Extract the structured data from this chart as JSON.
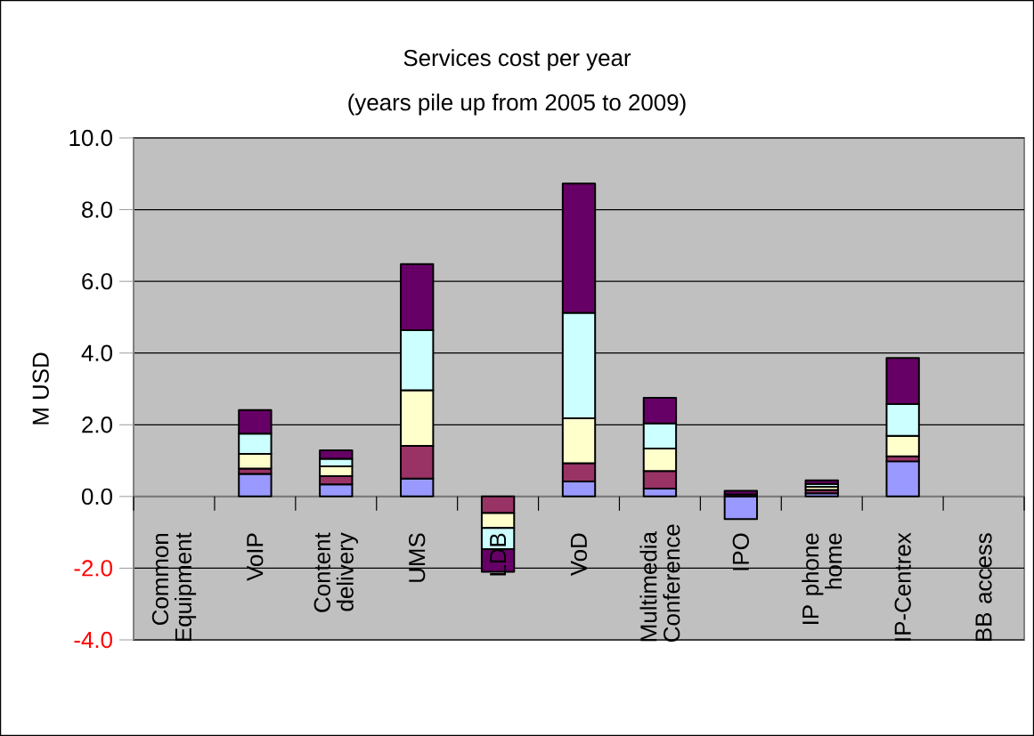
{
  "chart_data": {
    "type": "bar",
    "stacked": true,
    "title": "Services cost per year",
    "subtitle": "(years pile up from 2005 to 2009)",
    "ylabel": "M USD",
    "categories": [
      "Common Equipment",
      "VoIP",
      "Content delivery",
      "UMS",
      "LDB",
      "VoD",
      "Multimedia Conference",
      "IPO",
      "IP phone home",
      "IP-Centrex",
      "BB access"
    ],
    "series": [
      {
        "color": "#9999ff",
        "values": [
          null,
          0.63,
          0.34,
          0.5,
          null,
          0.42,
          0.22,
          -0.63,
          0.09,
          0.98,
          null
        ]
      },
      {
        "color": "#993366",
        "values": [
          null,
          0.15,
          0.23,
          0.91,
          -0.46,
          0.51,
          0.49,
          0.06,
          0.09,
          0.14,
          null
        ]
      },
      {
        "color": "#ffffcc",
        "values": [
          null,
          0.41,
          0.27,
          1.55,
          -0.42,
          1.25,
          0.63,
          null,
          0.09,
          0.57,
          null
        ]
      },
      {
        "color": "#ccffff",
        "values": [
          null,
          0.56,
          0.21,
          1.68,
          -0.59,
          2.94,
          0.7,
          null,
          0.08,
          0.89,
          null
        ]
      },
      {
        "color": "#660066",
        "values": [
          null,
          0.66,
          0.24,
          1.84,
          -0.63,
          3.61,
          0.71,
          0.1,
          0.1,
          1.28,
          null
        ]
      }
    ],
    "ylim": [
      -4,
      10
    ],
    "yticks": [
      {
        "value": -4,
        "label": "-4.0"
      },
      {
        "value": -2,
        "label": "-2.0"
      },
      {
        "value": 0,
        "label": "0.0"
      },
      {
        "value": 2,
        "label": "2.0"
      },
      {
        "value": 4,
        "label": "4.0"
      },
      {
        "value": 6,
        "label": "6.0"
      },
      {
        "value": 8,
        "label": "8.0"
      },
      {
        "value": 10,
        "label": "10.0"
      }
    ],
    "grid": "y"
  }
}
